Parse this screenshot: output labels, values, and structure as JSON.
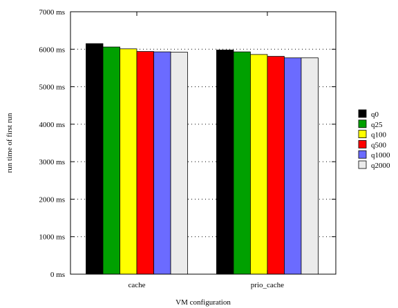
{
  "chart_data": {
    "type": "bar",
    "title": "",
    "xlabel": "VM configuration",
    "ylabel": "run time of first run",
    "ylim": [
      0,
      7000
    ],
    "yticks": [
      {
        "value": 0,
        "label": "0 ms"
      },
      {
        "value": 1000,
        "label": "1000 ms"
      },
      {
        "value": 2000,
        "label": "2000 ms"
      },
      {
        "value": 3000,
        "label": "3000 ms"
      },
      {
        "value": 4000,
        "label": "4000 ms"
      },
      {
        "value": 5000,
        "label": "5000 ms"
      },
      {
        "value": 6000,
        "label": "6000 ms"
      },
      {
        "value": 7000,
        "label": "7000 ms"
      }
    ],
    "grid": true,
    "legend_position": "right",
    "categories": [
      "cache",
      "prio_cache"
    ],
    "series": [
      {
        "name": "q0",
        "color": "#000000",
        "values": [
          6150,
          5980
        ]
      },
      {
        "name": "q25",
        "color": "#00a000",
        "values": [
          6060,
          5930
        ]
      },
      {
        "name": "q100",
        "color": "#ffff00",
        "values": [
          6010,
          5860
        ]
      },
      {
        "name": "q500",
        "color": "#ff0000",
        "values": [
          5940,
          5810
        ]
      },
      {
        "name": "q1000",
        "color": "#6b6bff",
        "values": [
          5930,
          5770
        ]
      },
      {
        "name": "q2000",
        "color": "#ebebeb",
        "values": [
          5920,
          5770
        ]
      }
    ]
  }
}
